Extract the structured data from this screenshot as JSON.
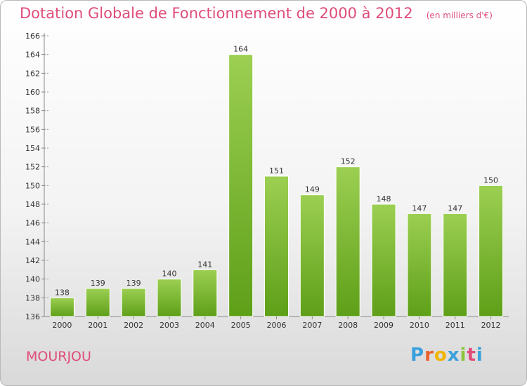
{
  "header": {
    "title": "Dotation Globale de Fonctionnement de 2000 à 2012",
    "subtitle": "(en milliers d'€)"
  },
  "footer": {
    "commune": "MOURJOU",
    "brand": "Proxiti",
    "brand_colors": [
      "#3aa0dc",
      "#e8642c",
      "#f0b400",
      "#3aa0dc",
      "#8bc43c",
      "#e04c7a",
      "#3aa0dc"
    ]
  },
  "colors": {
    "title": "#e04c7a",
    "bar_light": "#9ccf52",
    "bar_dark": "#5e9f18",
    "axis": "#888888",
    "grid_dash": "#9a9a9a",
    "text": "#333333"
  },
  "chart_data": {
    "type": "bar",
    "title": "Dotation Globale de Fonctionnement de 2000 à 2012",
    "subtitle": "(en milliers d'€)",
    "categories": [
      "2000",
      "2001",
      "2002",
      "2003",
      "2004",
      "2005",
      "2006",
      "2007",
      "2008",
      "2009",
      "2010",
      "2011",
      "2012"
    ],
    "values": [
      138,
      139,
      139,
      140,
      141,
      164,
      151,
      149,
      152,
      148,
      147,
      147,
      150
    ],
    "ylim": [
      136,
      166
    ],
    "yticks": [
      136,
      138,
      140,
      142,
      144,
      146,
      148,
      150,
      152,
      154,
      156,
      158,
      160,
      162,
      164,
      166
    ],
    "grid": false,
    "data_labels": true
  }
}
